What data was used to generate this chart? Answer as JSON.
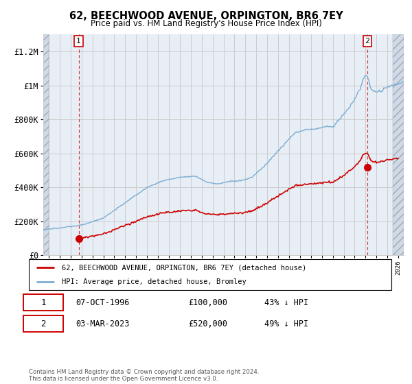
{
  "title": "62, BEECHWOOD AVENUE, ORPINGTON, BR6 7EY",
  "subtitle": "Price paid vs. HM Land Registry's House Price Index (HPI)",
  "legend_label_red": "62, BEECHWOOD AVENUE, ORPINGTON, BR6 7EY (detached house)",
  "legend_label_blue": "HPI: Average price, detached house, Bromley",
  "transaction1_date": "07-OCT-1996",
  "transaction1_price": "£100,000",
  "transaction1_hpi": "43% ↓ HPI",
  "transaction2_date": "03-MAR-2023",
  "transaction2_price": "£520,000",
  "transaction2_hpi": "49% ↓ HPI",
  "footer": "Contains HM Land Registry data © Crown copyright and database right 2024.\nThis data is licensed under the Open Government Licence v3.0.",
  "hpi_color": "#7aadd4",
  "price_color": "#cc0000",
  "marker_color": "#cc0000",
  "dashed_color": "#cc0000",
  "grid_color": "#cccccc",
  "background_plot": "#e8eef5",
  "ylim": [
    0,
    1300000
  ],
  "xlim_start": 1993.5,
  "xlim_end": 2026.5,
  "tx1_x": 1996.75,
  "tx1_y": 100000,
  "tx2_x": 2023.166,
  "tx2_y": 520000
}
